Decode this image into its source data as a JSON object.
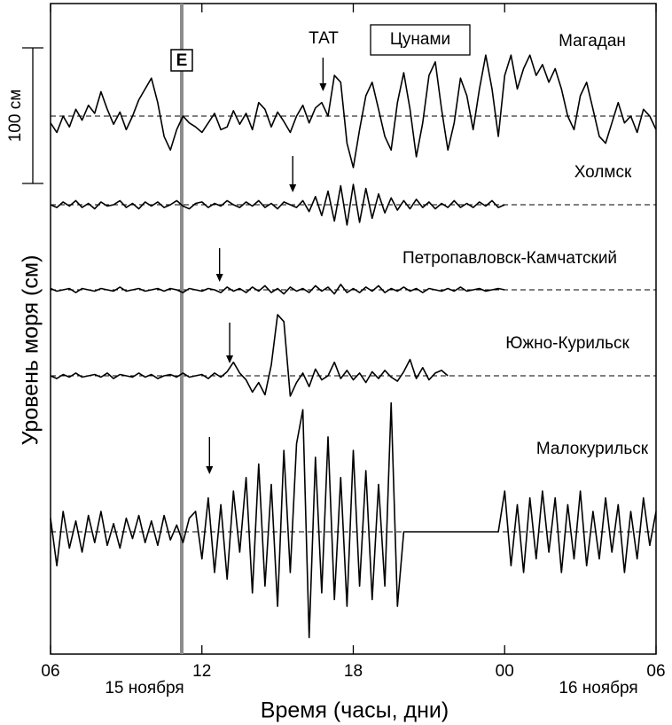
{
  "chart_data": {
    "type": "line",
    "y_label": "Уровень моря (см)",
    "x_label": "Время (часы, дни)",
    "date_labels": [
      "15 ноября",
      "16 ноября"
    ],
    "annotations": {
      "tat": "ТАТ",
      "tsunami": "Цунами"
    },
    "event_line": {
      "label": "E",
      "x": 11.2
    },
    "scale_bar": {
      "label": "100 см",
      "value": 100
    },
    "xlim": [
      6,
      30
    ],
    "xticks": [
      {
        "value": 6,
        "label": "06"
      },
      12,
      18,
      {
        "value": 24,
        "label": "00"
      },
      {
        "value": 30,
        "label": "06"
      }
    ],
    "x": [
      6,
      6.25,
      6.5,
      6.75,
      7,
      7.25,
      7.5,
      7.75,
      8,
      8.25,
      8.5,
      8.75,
      9,
      9.25,
      9.5,
      9.75,
      10,
      10.25,
      10.5,
      10.75,
      11,
      11.25,
      11.5,
      11.75,
      12,
      12.25,
      12.5,
      12.75,
      13,
      13.25,
      13.5,
      13.75,
      14,
      14.25,
      14.5,
      14.75,
      15,
      15.25,
      15.5,
      15.75,
      16,
      16.25,
      16.5,
      16.75,
      17,
      17.25,
      17.5,
      17.75,
      18,
      18.25,
      18.5,
      18.75,
      19,
      19.25,
      19.5,
      19.75,
      20,
      20.25,
      20.5,
      20.75,
      21,
      21.25,
      21.5,
      21.75,
      22,
      22.25,
      22.5,
      22.75,
      23,
      23.25,
      23.5,
      23.75,
      24,
      24.25,
      24.5,
      24.75,
      25,
      25.25,
      25.5,
      25.75,
      26,
      26.25,
      26.5,
      26.75,
      27,
      27.25,
      27.5,
      27.75,
      28,
      28.25,
      28.5,
      28.75,
      29,
      29.25,
      29.5,
      29.75,
      30
    ],
    "series": [
      {
        "name": "Магадан",
        "color": "#000000",
        "arrival": 16.8,
        "values": [
          -5,
          -12,
          0,
          -8,
          5,
          -3,
          8,
          2,
          18,
          5,
          -6,
          3,
          -10,
          0,
          12,
          20,
          28,
          10,
          -15,
          -25,
          -10,
          0,
          -5,
          -8,
          -12,
          -5,
          2,
          -10,
          -8,
          4,
          -6,
          2,
          -10,
          10,
          5,
          -8,
          3,
          -4,
          -12,
          0,
          8,
          -5,
          6,
          10,
          0,
          30,
          25,
          -20,
          -38,
          -10,
          15,
          25,
          5,
          -15,
          -25,
          10,
          32,
          5,
          -30,
          -5,
          30,
          40,
          5,
          -25,
          -5,
          28,
          15,
          -10,
          20,
          45,
          20,
          -15,
          30,
          45,
          20,
          35,
          45,
          30,
          38,
          25,
          35,
          20,
          0,
          -10,
          15,
          25,
          5,
          -15,
          -20,
          -5,
          10,
          -5,
          0,
          -12,
          5,
          0,
          -10
        ]
      },
      {
        "name": "Холмск",
        "color": "#000000",
        "arrival": 15.6,
        "values": [
          0,
          -2,
          2,
          -1,
          3,
          -2,
          1,
          -3,
          2,
          -1,
          0,
          3,
          -2,
          1,
          -3,
          2,
          -1,
          2,
          -2,
          0,
          3,
          -1,
          -3,
          1,
          2,
          -2,
          1,
          -1,
          3,
          0,
          -2,
          2,
          -1,
          3,
          -2,
          1,
          -3,
          2,
          0,
          -2,
          3,
          -5,
          6,
          -8,
          10,
          -12,
          14,
          -15,
          15,
          -13,
          12,
          -10,
          8,
          -6,
          5,
          -4,
          3,
          -3,
          4,
          -2,
          2,
          -3,
          1,
          -2,
          3,
          -2,
          1,
          -2,
          2,
          -1,
          3,
          -2,
          0,
          null,
          null,
          null,
          null,
          null,
          null,
          null,
          null,
          null,
          null,
          null,
          null,
          null,
          null,
          null,
          null,
          null,
          null,
          null,
          null,
          null,
          null,
          null,
          null
        ]
      },
      {
        "name": "Петропавловск-Камчатский",
        "color": "#000000",
        "arrival": 12.7,
        "values": [
          1,
          -1,
          0,
          1,
          -2,
          1,
          0,
          -1,
          1,
          0,
          -1,
          2,
          -1,
          0,
          1,
          -1,
          0,
          1,
          -1,
          1,
          0,
          -2,
          1,
          0,
          -1,
          1,
          0,
          -2,
          2,
          -1,
          1,
          -2,
          2,
          -1,
          3,
          -2,
          1,
          -3,
          2,
          -1,
          1,
          -2,
          3,
          -1,
          2,
          -3,
          4,
          -2,
          1,
          -2,
          2,
          -1,
          3,
          -2,
          1,
          -1,
          2,
          -1,
          1,
          -2,
          1,
          0,
          -1,
          1,
          -1,
          2,
          -1,
          0,
          1,
          -1,
          0,
          1,
          0,
          null,
          null,
          null,
          null,
          null,
          null,
          null,
          null,
          null,
          null,
          null,
          null,
          null,
          null,
          null,
          null,
          null,
          null,
          null,
          null,
          null,
          null,
          null,
          null
        ]
      },
      {
        "name": "Южно-Курильск",
        "color": "#000000",
        "arrival": 13.1,
        "values": [
          0,
          -2,
          1,
          -1,
          2,
          -1,
          0,
          1,
          -1,
          2,
          -2,
          1,
          0,
          -1,
          2,
          -1,
          1,
          -2,
          0,
          1,
          -1,
          2,
          -1,
          0,
          1,
          -2,
          2,
          -1,
          3,
          10,
          2,
          -3,
          -12,
          -5,
          -14,
          8,
          45,
          40,
          -15,
          -5,
          2,
          -8,
          5,
          -3,
          0,
          10,
          -2,
          4,
          -3,
          2,
          -5,
          3,
          -2,
          4,
          -1,
          -4,
          3,
          12,
          -2,
          6,
          -3,
          2,
          4,
          0,
          null,
          null,
          null,
          null,
          null,
          null,
          null,
          null,
          null,
          null,
          null,
          null,
          null,
          null,
          null,
          null,
          null,
          null,
          null,
          null,
          null,
          null,
          null,
          null,
          null,
          null,
          null,
          null,
          null,
          null,
          null,
          null,
          null
        ]
      },
      {
        "name": "Малокурильск",
        "color": "#000000",
        "arrival": 12.3,
        "values": [
          10,
          -25,
          15,
          -12,
          8,
          -15,
          12,
          -8,
          15,
          -10,
          6,
          -12,
          10,
          -5,
          12,
          -8,
          8,
          -10,
          12,
          -6,
          5,
          -8,
          10,
          15,
          -20,
          25,
          -30,
          20,
          -35,
          30,
          -15,
          40,
          -45,
          50,
          -40,
          35,
          -55,
          60,
          -30,
          65,
          90,
          -78,
          55,
          -45,
          70,
          -50,
          40,
          -55,
          60,
          -40,
          45,
          -50,
          35,
          -40,
          95,
          -55,
          0,
          0,
          0,
          0,
          0,
          0,
          0,
          0,
          0,
          0,
          0,
          0,
          0,
          0,
          0,
          0,
          30,
          -25,
          20,
          -30,
          25,
          -20,
          30,
          -15,
          25,
          -30,
          20,
          -20,
          30,
          -25,
          15,
          -20,
          25,
          -15,
          20,
          -30,
          15,
          -20,
          25,
          -10,
          15
        ]
      }
    ]
  }
}
